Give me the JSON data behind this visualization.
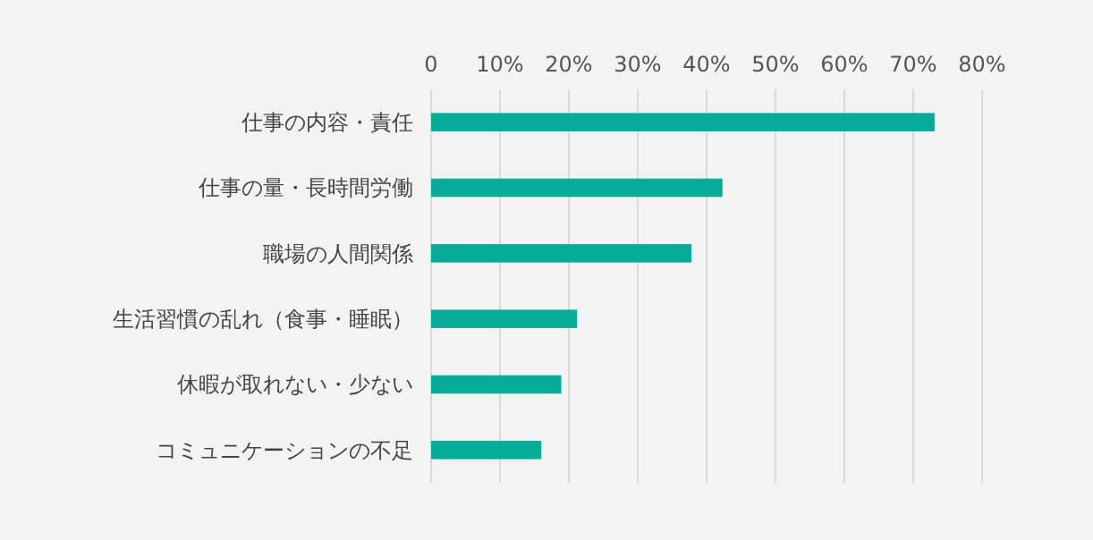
{
  "chart_data": {
    "type": "bar",
    "orientation": "horizontal",
    "categories": [
      "仕事の内容・責任",
      "仕事の量・長時間労働",
      "職場の人間関係",
      "生活習慣の乱れ（食事・睡眠）",
      "休暇が取れない・少ない",
      "コミュニケーションの不足"
    ],
    "values": [
      73.1,
      42.3,
      37.8,
      21.2,
      18.9,
      16.0
    ],
    "color": "#05ac98",
    "xlim": [
      0,
      80
    ],
    "xticks": [
      0,
      {
        "value": 10,
        "label": "10%"
      },
      {
        "value": 20,
        "label": "20%"
      },
      {
        "value": 30,
        "label": "30%"
      },
      {
        "value": 40,
        "label": "40%"
      },
      {
        "value": 50,
        "label": "50%"
      },
      {
        "value": 60,
        "label": "60%"
      },
      {
        "value": 70,
        "label": "70%"
      },
      {
        "value": 80,
        "label": "80%"
      }
    ],
    "grid": "x"
  }
}
